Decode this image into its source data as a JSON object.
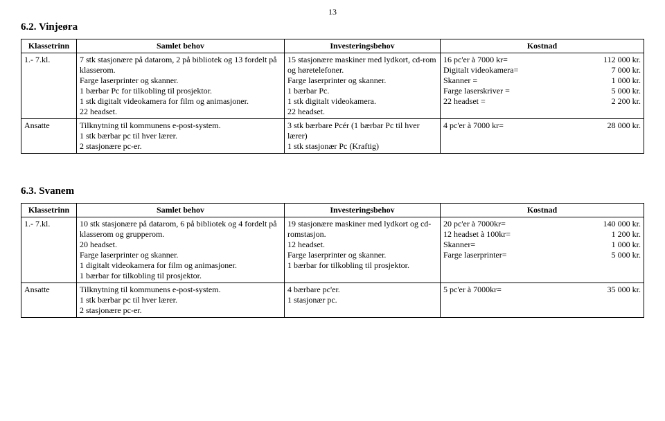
{
  "page_number": "13",
  "section1": {
    "heading": "6.2.        Vinjeøra",
    "headers": {
      "c1": "Klassetrinn",
      "c2": "Samlet behov",
      "c3": "Investeringsbehov",
      "c4": "Kostnad"
    },
    "rows": [
      {
        "klassetrinn": "1.- 7.kl.",
        "samlet": "7 stk stasjonære på datarom, 2 på bibliotek og 13 fordelt på klasserom.\nFarge laserprinter og skanner.\n1 bærbar Pc for tilkobling til prosjektor.\n1 stk digitalt videokamera for film og animasjoner.\n22 headset.",
        "invest": "15 stasjonære maskiner med lydkort, cd-rom og høretelefoner.\nFarge laserprinter og skanner.\n1 bærbar Pc.\n1 stk digitalt videokamera.\n22 headset.",
        "kostnad": [
          {
            "label": "16 pc'er à 7000 kr=",
            "value": "112 000 kr."
          },
          {
            "label": "Digitalt videokamera=",
            "value": "7 000 kr."
          },
          {
            "label": "Skanner =",
            "value": "1 000 kr."
          },
          {
            "label": "Farge laserskriver =",
            "value": "5 000 kr."
          },
          {
            "label": "22 headset =",
            "value": "2 200 kr."
          }
        ]
      },
      {
        "klassetrinn": "Ansatte",
        "samlet": "Tilknytning til kommunens e-post-system.\n1 stk bærbar pc til hver lærer.\n2 stasjonære pc-er.",
        "invest": "3 stk bærbare Pcér (1 bærbar Pc til hver lærer)\n1 stk stasjonær Pc (Kraftig)",
        "kostnad": [
          {
            "label": "4 pc'er à 7000 kr=",
            "value": "28 000 kr."
          }
        ]
      }
    ]
  },
  "section2": {
    "heading": "6.3.        Svanem",
    "headers": {
      "c1": "Klassetrinn",
      "c2": "Samlet behov",
      "c3": "Investeringsbehov",
      "c4": "Kostnad"
    },
    "rows": [
      {
        "klassetrinn": "1.- 7.kl.",
        "samlet": "10 stk stasjonære på datarom, 6 på bibliotek og 4 fordelt på klasserom og grupperom.\n20 headset.\nFarge laserprinter og skanner.\n1 digitalt videokamera for film og animasjoner.\n1 bærbar for tilkobling til prosjektor.",
        "invest": "19 stasjonære maskiner med lydkort og cd-romstasjon.\n12 headset.\nFarge laserprinter og skanner.\n1 bærbar for tilkobling til prosjektor.",
        "kostnad": [
          {
            "label": "20 pc'er à 7000kr=",
            "value": "140 000 kr."
          },
          {
            "label": "12 headset à 100kr=",
            "value": "1 200 kr."
          },
          {
            "label": "Skanner=",
            "value": "1 000 kr."
          },
          {
            "label": "Farge laserprinter=",
            "value": "5 000 kr."
          }
        ]
      },
      {
        "klassetrinn": "Ansatte",
        "samlet": "Tilknytning til kommunens e-post-system.\n1 stk bærbar pc til hver lærer.\n2 stasjonære pc-er.",
        "invest": "4 bærbare pc'er.\n1 stasjonær pc.",
        "kostnad": [
          {
            "label": "5 pc'er à 7000kr=",
            "value": "35 000 kr."
          }
        ]
      }
    ]
  }
}
